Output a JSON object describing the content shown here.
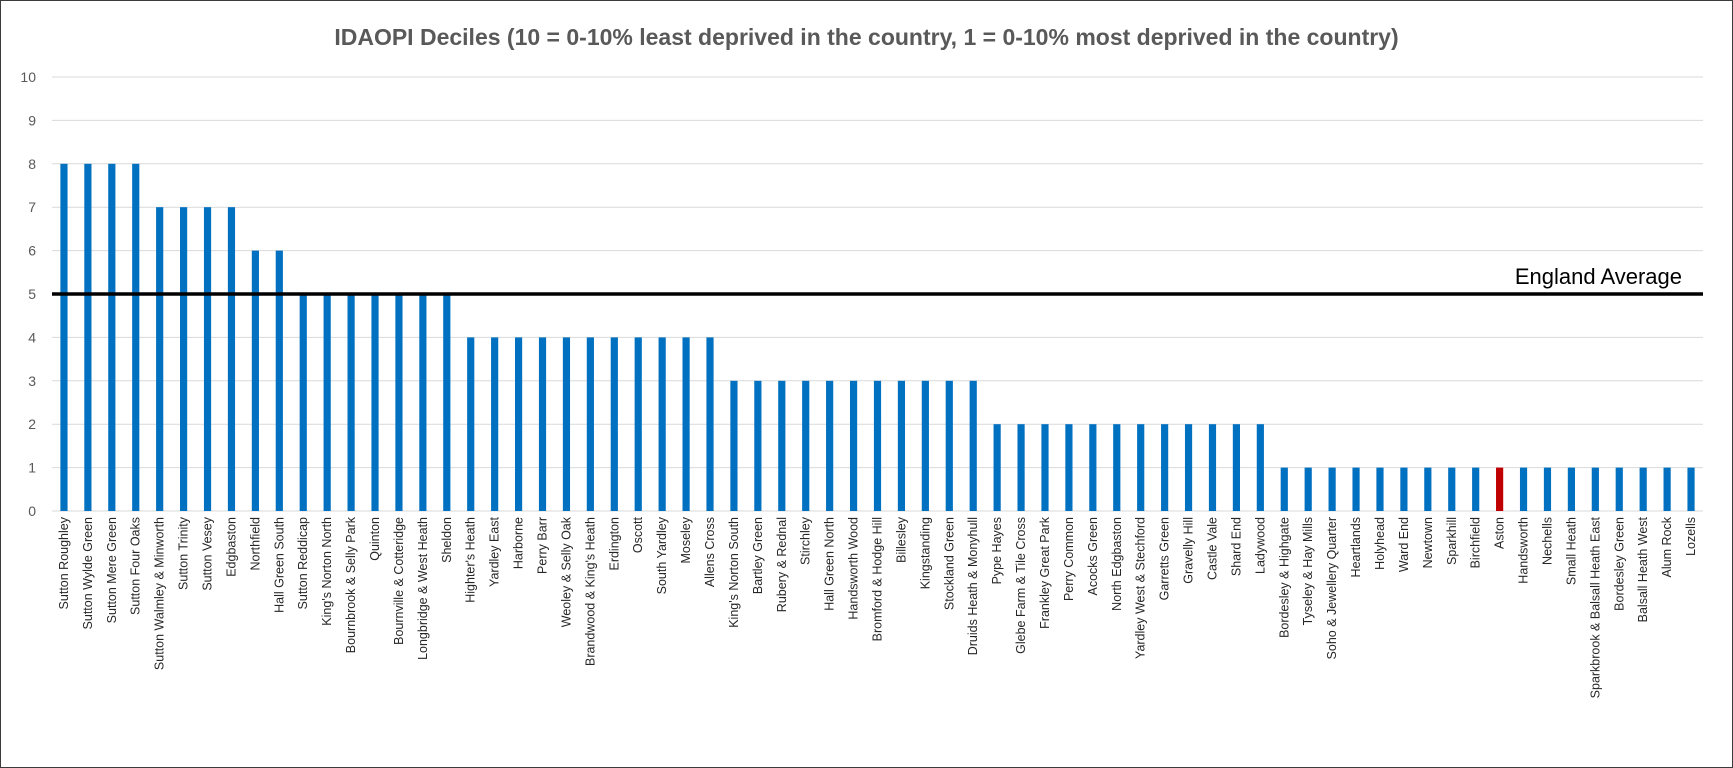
{
  "colors": {
    "bar": "#0070C0",
    "highlight": "#C00000",
    "grid": "#D9D9D9",
    "reference_line": "#000000"
  },
  "chart_data": {
    "type": "bar",
    "title": "IDAOPI Deciles (10 = 0-10% least deprived in the country, 1 = 0-10% most deprived in the country)",
    "xlabel": "",
    "ylabel": "",
    "ylim": [
      0,
      10
    ],
    "yticks": [
      "0",
      "1",
      "2",
      "3",
      "4",
      "5",
      "6",
      "7",
      "8",
      "9",
      "10"
    ],
    "grid": true,
    "legend": "none",
    "highlight_category": "Aston",
    "reference_line": {
      "label": "England Average",
      "value": 5
    },
    "categories": [
      "Sutton Roughley",
      "Sutton Wylde Green",
      "Sutton Mere Green",
      "Sutton Four Oaks",
      "Sutton Walmley & Minworth",
      "Sutton Trinity",
      "Sutton Vesey",
      "Edgbaston",
      "Northfield",
      "Hall Green South",
      "Sutton Reddicap",
      "King's Norton North",
      "Bournbrook & Selly Park",
      "Quinton",
      "Bournville & Cotteridge",
      "Longbridge & West Heath",
      "Sheldon",
      "Highter's Heath",
      "Yardley East",
      "Harborne",
      "Perry Barr",
      "Weoley & Selly Oak",
      "Brandwood & King's Heath",
      "Erdington",
      "Oscott",
      "South Yardley",
      "Moseley",
      "Allens Cross",
      "King's Norton South",
      "Bartley Green",
      "Rubery & Rednal",
      "Stirchley",
      "Hall Green North",
      "Handsworth Wood",
      "Bromford & Hodge Hill",
      "Billesley",
      "Kingstanding",
      "Stockland Green",
      "Druids Heath & Monyhull",
      "Pype Hayes",
      "Glebe Farm & Tile Cross",
      "Frankley Great Park",
      "Perry Common",
      "Acocks Green",
      "North Edgbaston",
      "Yardley West & Stechford",
      "Garretts Green",
      "Gravelly Hill",
      "Castle Vale",
      "Shard End",
      "Ladywood",
      "Bordesley & Highgate",
      "Tyseley & Hay Mills",
      "Soho & Jewellery Quarter",
      "Heartlands",
      "Holyhead",
      "Ward End",
      "Newtown",
      "Sparkhill",
      "Birchfield",
      "Aston",
      "Handsworth",
      "Nechells",
      "Small Heath",
      "Sparkbrook & Balsall Heath East",
      "Bordesley Green",
      "Balsall Heath West",
      "Alum Rock",
      "Lozells"
    ],
    "values": [
      8,
      8,
      8,
      8,
      7,
      7,
      7,
      7,
      6,
      6,
      5,
      5,
      5,
      5,
      5,
      5,
      5,
      4,
      4,
      4,
      4,
      4,
      4,
      4,
      4,
      4,
      4,
      4,
      3,
      3,
      3,
      3,
      3,
      3,
      3,
      3,
      3,
      3,
      3,
      2,
      2,
      2,
      2,
      2,
      2,
      2,
      2,
      2,
      2,
      2,
      2,
      1,
      1,
      1,
      1,
      1,
      1,
      1,
      1,
      1,
      1,
      1,
      1,
      1,
      1,
      1,
      1,
      1,
      1
    ]
  }
}
